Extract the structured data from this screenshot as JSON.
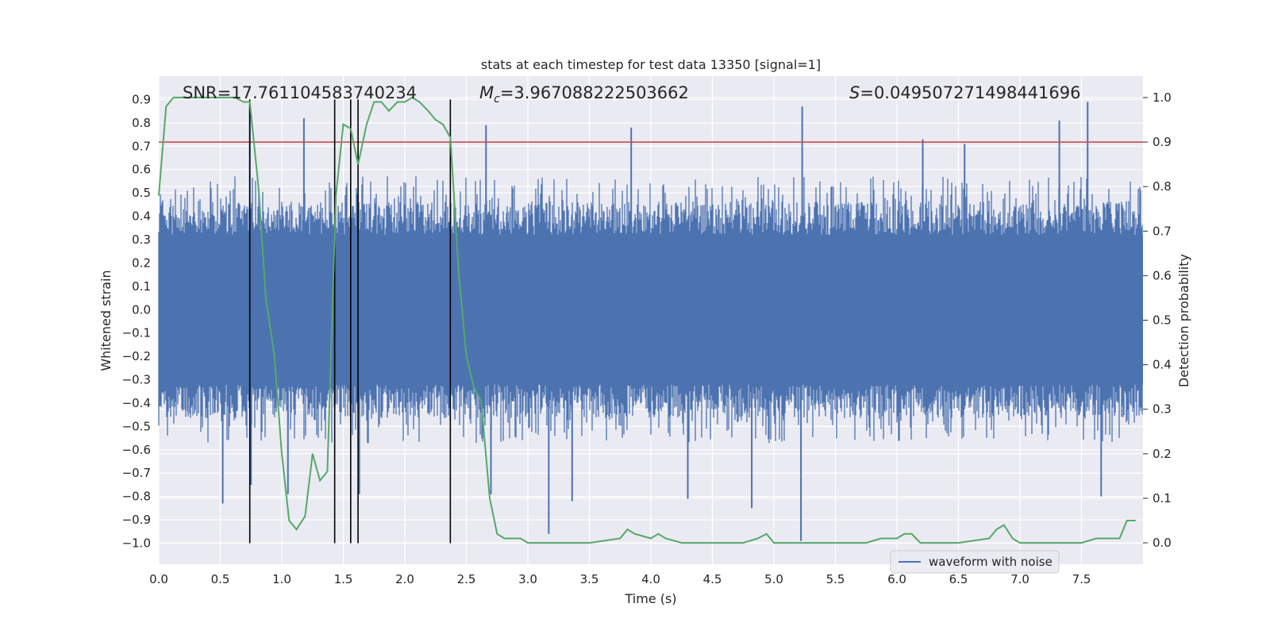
{
  "chart_data": {
    "type": "line",
    "title": "stats at each timestep for test data 13350 [signal=1]",
    "xlabel": "Time (s)",
    "ylabel": "Whitened strain",
    "y2label": "Detection probability",
    "xlim": [
      0.0,
      8.0
    ],
    "ylim": [
      -1.09,
      1.0
    ],
    "y2lim": [
      -0.048,
      1.048
    ],
    "xticks": [
      "0.0",
      "0.5",
      "1.0",
      "1.5",
      "2.0",
      "2.5",
      "3.0",
      "3.5",
      "4.0",
      "4.5",
      "5.0",
      "5.5",
      "6.0",
      "6.5",
      "7.0",
      "7.5"
    ],
    "yticks": [
      "0.9",
      "0.8",
      "0.7",
      "0.6",
      "0.5",
      "0.4",
      "0.3",
      "0.2",
      "0.1",
      "0.0",
      "−0.1",
      "−0.2",
      "−0.3",
      "−0.4",
      "−0.5",
      "−0.6",
      "−0.7",
      "−0.8",
      "−0.9",
      "−1.0"
    ],
    "y2ticks": [
      "1.0",
      "0.9",
      "0.8",
      "0.7",
      "0.6",
      "0.5",
      "0.4",
      "0.3",
      "0.2",
      "0.1",
      "0.0"
    ],
    "annotations": {
      "snr": "SNR=17.761104583740234",
      "mc_symbol": "M",
      "mc_sub": "c",
      "mc_value": "=3.967088222503662",
      "s_symbol": "S",
      "s_value": "=0.0495072714984416​96"
    },
    "legend": {
      "position": "lower-right",
      "entries": [
        {
          "label": "waveform with noise",
          "color": "#4c72b0"
        }
      ]
    },
    "threshold": {
      "axis": "right",
      "value": 0.9,
      "color": "#c44e52"
    },
    "vertical_markers": {
      "times": [
        0.74,
        1.43,
        1.56,
        1.62,
        2.37
      ],
      "y_range": [
        -1.0,
        0.9
      ],
      "color": "#000000"
    },
    "waveform": {
      "name": "waveform with noise",
      "color": "#4c72b0",
      "duration": 8.0,
      "band": 0.32,
      "typical_peak": 0.5,
      "spikes": [
        {
          "t": 0.74,
          "v": 0.88
        },
        {
          "t": 0.75,
          "v": -0.75
        },
        {
          "t": 1.18,
          "v": 0.82
        },
        {
          "t": 0.52,
          "v": -0.83
        },
        {
          "t": 1.05,
          "v": -0.79
        },
        {
          "t": 1.63,
          "v": -0.79
        },
        {
          "t": 2.66,
          "v": 0.79
        },
        {
          "t": 2.7,
          "v": -0.79
        },
        {
          "t": 3.17,
          "v": -0.96
        },
        {
          "t": 3.36,
          "v": -0.82
        },
        {
          "t": 3.84,
          "v": 0.78
        },
        {
          "t": 4.3,
          "v": -0.81
        },
        {
          "t": 4.82,
          "v": -0.85
        },
        {
          "t": 5.23,
          "v": 0.87
        },
        {
          "t": 5.22,
          "v": -0.99
        },
        {
          "t": 6.21,
          "v": 0.73
        },
        {
          "t": 7.55,
          "v": 0.89
        },
        {
          "t": 7.66,
          "v": -0.8
        },
        {
          "t": 7.32,
          "v": 0.81
        },
        {
          "t": 6.55,
          "v": 0.71
        }
      ]
    },
    "series": [
      {
        "name": "Detection probability",
        "axis": "right",
        "color": "#55a868",
        "x": [
          0.0,
          0.06,
          0.12,
          0.19,
          0.25,
          0.31,
          0.37,
          0.44,
          0.5,
          0.56,
          0.62,
          0.69,
          0.74,
          0.81,
          0.87,
          0.94,
          1.0,
          1.06,
          1.12,
          1.19,
          1.25,
          1.31,
          1.37,
          1.44,
          1.5,
          1.56,
          1.62,
          1.69,
          1.75,
          1.81,
          1.87,
          1.94,
          2.0,
          2.06,
          2.12,
          2.19,
          2.25,
          2.31,
          2.37,
          2.44,
          2.5,
          2.56,
          2.62,
          2.69,
          2.75,
          2.81,
          2.87,
          2.94,
          3.0,
          3.25,
          3.5,
          3.75,
          3.81,
          3.87,
          4.0,
          4.06,
          4.12,
          4.25,
          4.5,
          4.75,
          4.87,
          4.94,
          5.0,
          5.25,
          5.5,
          5.75,
          5.87,
          6.0,
          6.06,
          6.12,
          6.19,
          6.25,
          6.5,
          6.75,
          6.81,
          6.87,
          6.94,
          7.0,
          7.25,
          7.5,
          7.62,
          7.69,
          7.75,
          7.81,
          7.87,
          7.94
        ],
        "values": [
          0.78,
          0.98,
          1.0,
          1.0,
          1.0,
          1.0,
          1.0,
          1.0,
          1.0,
          1.0,
          1.0,
          0.99,
          0.99,
          0.8,
          0.55,
          0.42,
          0.2,
          0.05,
          0.03,
          0.06,
          0.2,
          0.14,
          0.16,
          0.78,
          0.94,
          0.93,
          0.85,
          0.94,
          0.99,
          0.99,
          0.97,
          0.99,
          0.99,
          1.0,
          0.99,
          0.97,
          0.95,
          0.94,
          0.91,
          0.6,
          0.42,
          0.35,
          0.32,
          0.1,
          0.02,
          0.01,
          0.01,
          0.01,
          0.0,
          0.0,
          0.0,
          0.01,
          0.03,
          0.02,
          0.01,
          0.02,
          0.01,
          0.0,
          0.0,
          0.0,
          0.01,
          0.02,
          0.0,
          0.0,
          0.0,
          0.0,
          0.01,
          0.01,
          0.02,
          0.02,
          0.0,
          0.0,
          0.0,
          0.01,
          0.03,
          0.04,
          0.01,
          0.0,
          0.0,
          0.0,
          0.01,
          0.01,
          0.01,
          0.01,
          0.05,
          0.05
        ]
      }
    ]
  }
}
